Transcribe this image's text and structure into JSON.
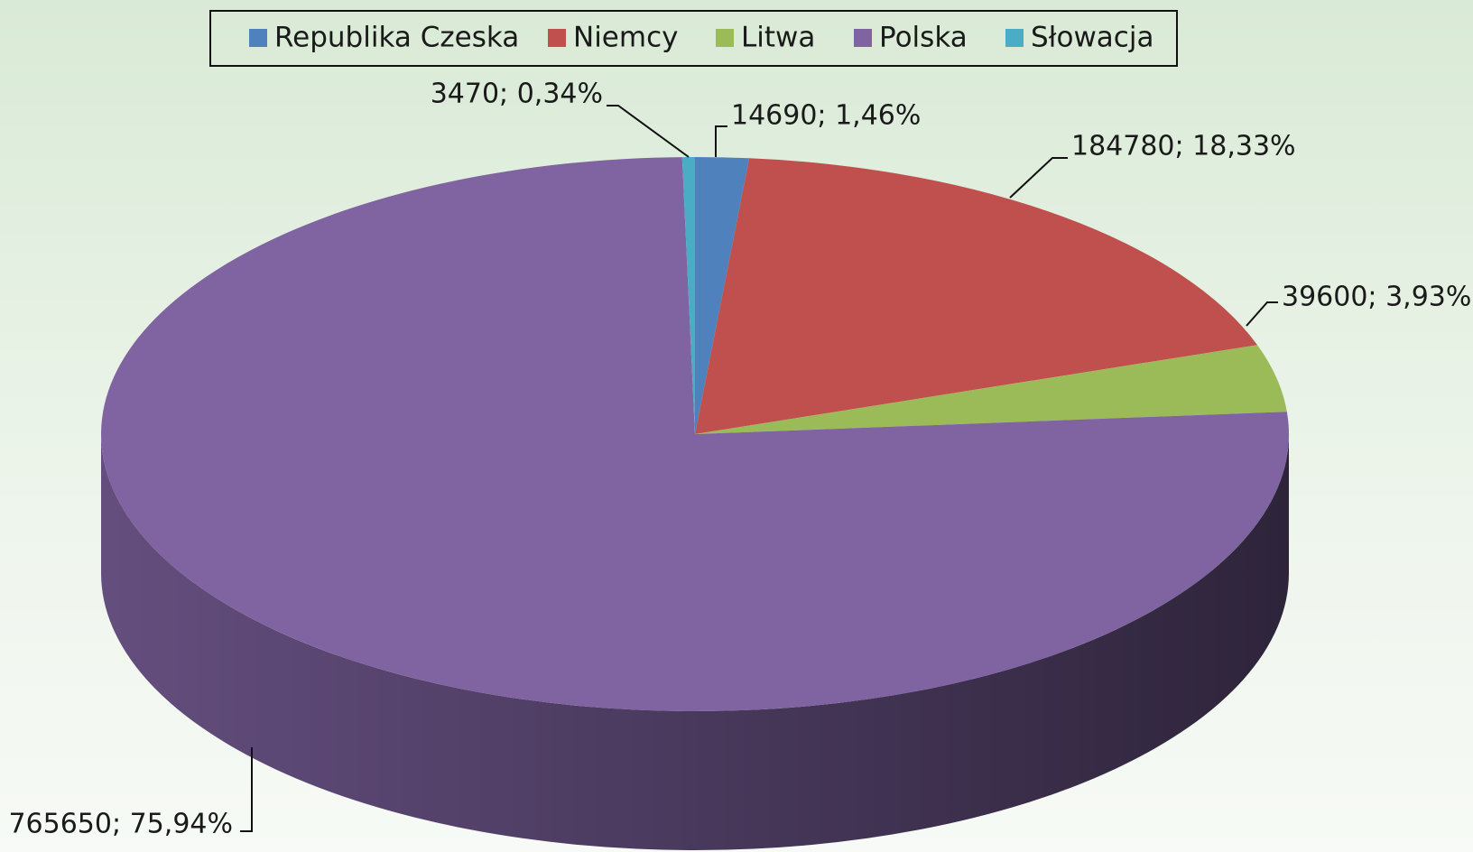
{
  "chart_data": {
    "type": "pie",
    "categories": [
      "Republika Czeska",
      "Niemcy",
      "Litwa",
      "Polska",
      "Słowacja"
    ],
    "values": [
      14690,
      184780,
      39600,
      765650,
      3470
    ],
    "value_labels": [
      "14690; 1,46%",
      "184780; 18,33%",
      "39600; 3,93%",
      "765650; 75,94%",
      "3470; 0,34%"
    ],
    "colors": [
      "#4f81bd",
      "#c0504d",
      "#9bbb59",
      "#8064a2",
      "#4bacc6"
    ],
    "legend": "top"
  }
}
